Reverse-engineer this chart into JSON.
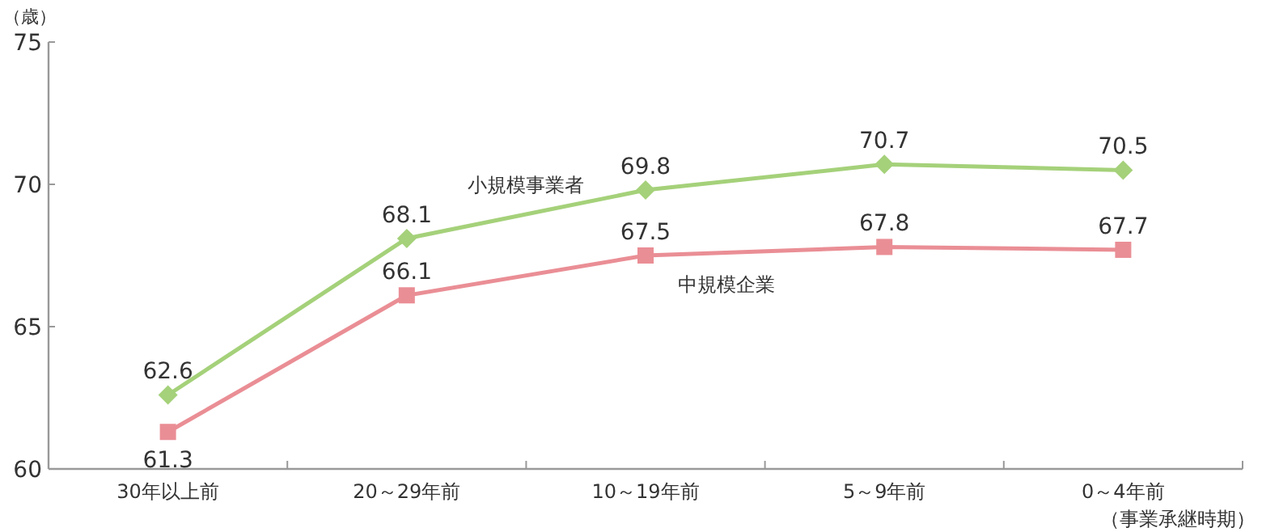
{
  "chart_data": {
    "type": "line",
    "ylabel": "（歳）",
    "xlabel": "（事業承継時期）",
    "categories": [
      "30年以上前",
      "20～29年前",
      "10～19年前",
      "5～9年前",
      "0～4年前"
    ],
    "series": [
      {
        "name": "小規模事業者",
        "color": "#a5d17a",
        "marker": "diamond",
        "values": [
          62.6,
          68.1,
          69.8,
          70.7,
          70.5
        ]
      },
      {
        "name": "中規模企業",
        "color": "#ea8e95",
        "marker": "square",
        "values": [
          61.3,
          66.1,
          67.5,
          67.8,
          67.7
        ]
      }
    ],
    "ylim": [
      60,
      75
    ],
    "yticks": [
      60,
      65,
      70,
      75
    ],
    "data_labels": true,
    "grid": false
  }
}
